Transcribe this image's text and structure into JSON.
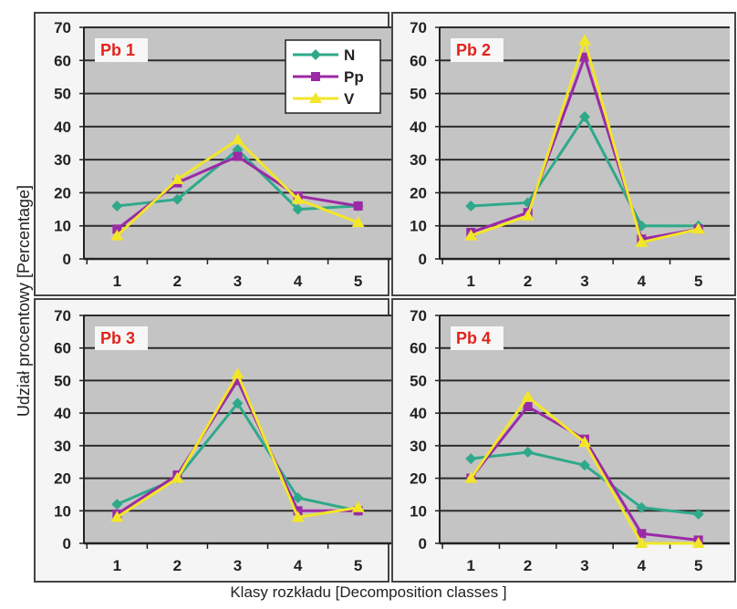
{
  "figure": {
    "ylabel": "Udział procentowy [Percentage]",
    "xlabel": "Klasy rozkładu [Decomposition classes ]"
  },
  "legend": {
    "placement": "top-right of Pb 1 panel",
    "items": [
      {
        "name": "N",
        "color": "#2ea98a",
        "marker": "diamond"
      },
      {
        "name": "Pp",
        "color": "#9b2aa6",
        "marker": "square"
      },
      {
        "name": "V",
        "color": "#f2e629",
        "marker": "triangle"
      }
    ]
  },
  "colors": {
    "plot_background": "#c4c4c4",
    "panel_background": "#f5f5f5",
    "gridline": "#2c2c2c",
    "panel_label": "#e2231a"
  },
  "chart_data": [
    {
      "type": "line",
      "title": "Pb 1",
      "x": [
        1,
        2,
        3,
        4,
        5
      ],
      "ylim": [
        0,
        70
      ],
      "yticks": [
        0,
        10,
        20,
        30,
        40,
        50,
        60,
        70
      ],
      "grid": true,
      "series": [
        {
          "name": "N",
          "values": [
            16,
            18,
            33,
            15,
            16
          ]
        },
        {
          "name": "Pp",
          "values": [
            9,
            23,
            31,
            19,
            16
          ]
        },
        {
          "name": "V",
          "values": [
            7,
            24,
            36,
            18,
            11
          ]
        }
      ]
    },
    {
      "type": "line",
      "title": "Pb 2",
      "x": [
        1,
        2,
        3,
        4,
        5
      ],
      "ylim": [
        0,
        70
      ],
      "yticks": [
        0,
        10,
        20,
        30,
        40,
        50,
        60,
        70
      ],
      "grid": true,
      "series": [
        {
          "name": "N",
          "values": [
            16,
            17,
            43,
            10,
            10
          ]
        },
        {
          "name": "Pp",
          "values": [
            8,
            14,
            61,
            6,
            9
          ]
        },
        {
          "name": "V",
          "values": [
            7,
            13,
            66,
            5,
            9
          ]
        }
      ]
    },
    {
      "type": "line",
      "title": "Pb 3",
      "x": [
        1,
        2,
        3,
        4,
        5
      ],
      "ylim": [
        0,
        70
      ],
      "yticks": [
        0,
        10,
        20,
        30,
        40,
        50,
        60,
        70
      ],
      "grid": true,
      "series": [
        {
          "name": "N",
          "values": [
            12,
            20,
            43,
            14,
            10
          ]
        },
        {
          "name": "Pp",
          "values": [
            9,
            21,
            50,
            10,
            10
          ]
        },
        {
          "name": "V",
          "values": [
            8,
            20,
            52,
            8,
            11
          ]
        }
      ]
    },
    {
      "type": "line",
      "title": "Pb 4",
      "x": [
        1,
        2,
        3,
        4,
        5
      ],
      "ylim": [
        0,
        70
      ],
      "yticks": [
        0,
        10,
        20,
        30,
        40,
        50,
        60,
        70
      ],
      "grid": true,
      "series": [
        {
          "name": "N",
          "values": [
            26,
            28,
            24,
            11,
            9
          ]
        },
        {
          "name": "Pp",
          "values": [
            20,
            42,
            32,
            3,
            1
          ]
        },
        {
          "name": "V",
          "values": [
            20,
            45,
            31,
            0,
            0
          ]
        }
      ]
    }
  ]
}
